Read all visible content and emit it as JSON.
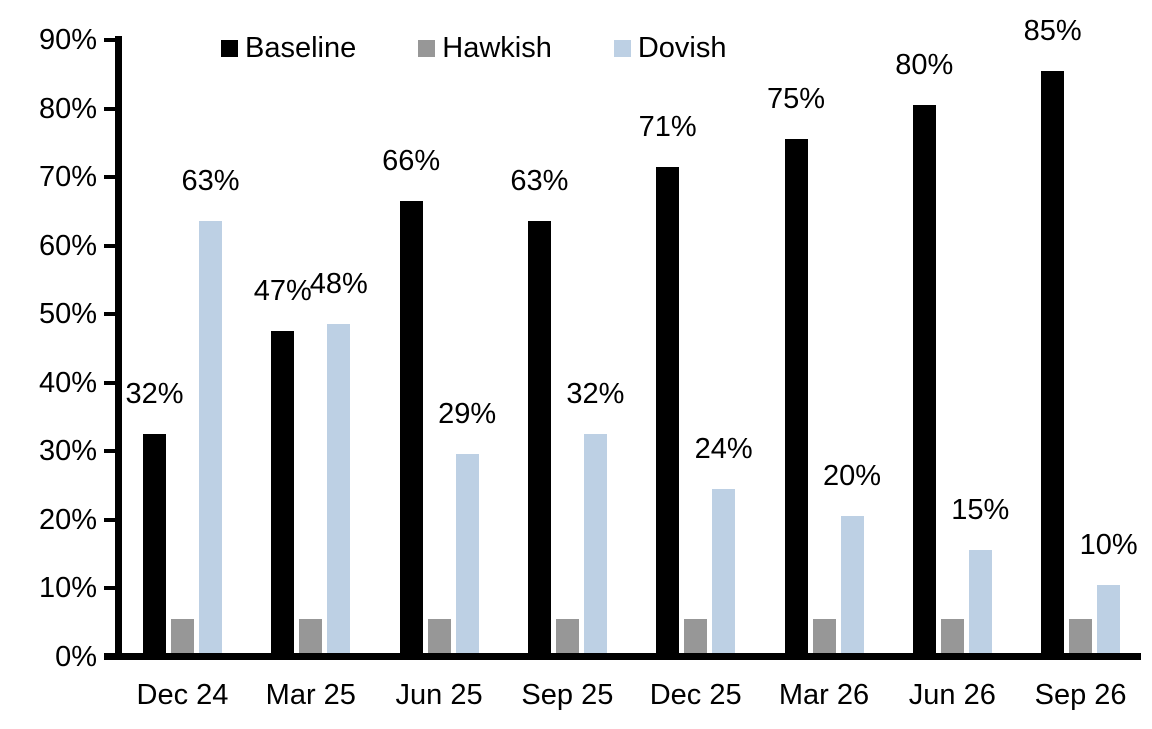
{
  "chart_data": {
    "type": "bar",
    "title": "",
    "xlabel": "",
    "ylabel": "",
    "categories": [
      "Dec 24",
      "Mar 25",
      "Jun 25",
      "Sep 25",
      "Dec 25",
      "Mar 26",
      "Jun 26",
      "Sep 26"
    ],
    "series": [
      {
        "name": "Baseline",
        "color": "#000000",
        "values": [
          32,
          47,
          66,
          63,
          71,
          75,
          80,
          85
        ],
        "data_labels": [
          "32%",
          "47%",
          "66%",
          "63%",
          "71%",
          "75%",
          "80%",
          "85%"
        ]
      },
      {
        "name": "Hawkish",
        "color": "#979797",
        "values": [
          5,
          5,
          5,
          5,
          5,
          5,
          5,
          5
        ],
        "data_labels": [
          "",
          "",
          "",
          "",
          "",
          "",
          "",
          ""
        ]
      },
      {
        "name": "Dovish",
        "color": "#BDD0E4",
        "values": [
          63,
          48,
          29,
          32,
          24,
          20,
          15,
          10
        ],
        "data_labels": [
          "63%",
          "48%",
          "29%",
          "32%",
          "24%",
          "20%",
          "15%",
          "10%"
        ]
      }
    ],
    "y_axis": {
      "min": 0,
      "max": 90,
      "tick_step": 10,
      "tick_labels": [
        "0%",
        "10%",
        "20%",
        "30%",
        "40%",
        "50%",
        "60%",
        "70%",
        "80%",
        "90%"
      ]
    },
    "grid": false,
    "legend_position": "top-inside",
    "axis_color": "#000000",
    "background_color": "#ffffff"
  }
}
